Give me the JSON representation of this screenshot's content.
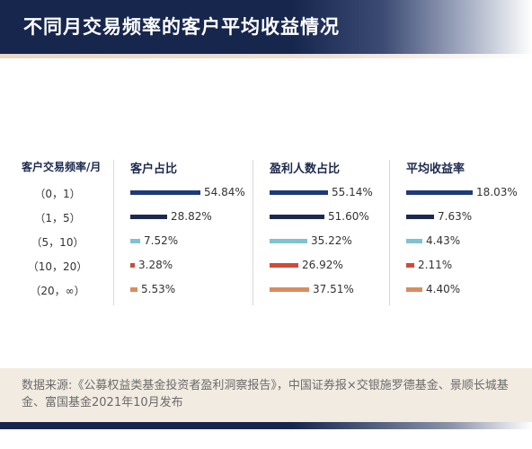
{
  "title": "不同月交易频率的客户平均收益情况",
  "source": "数据来源:《公募权益类基金投资者盈利洞察报告》，中国证券报×交银施罗德基金、景顺长城基金、富国基金2021年10月发布",
  "colors": {
    "navy": "#1e3a78",
    "dark_navy": "#1c2850",
    "light_blue": "#7cc3d3",
    "red": "#d24a3a",
    "tan": "#d98c5f"
  },
  "chart_data": {
    "type": "bar",
    "orientation": "horizontal",
    "category_header": "客户交易频率/月",
    "categories": [
      "（0，1）",
      "（1，5）",
      "（5，10）",
      "（10，20）",
      "（20，∞）"
    ],
    "series": [
      {
        "name": "客户占比",
        "values": [
          54.84,
          28.82,
          7.52,
          3.28,
          5.53
        ],
        "labels": [
          "54.84%",
          "28.82%",
          "7.52%",
          "3.28%",
          "5.53%"
        ]
      },
      {
        "name": "盈利人数占比",
        "values": [
          55.14,
          51.6,
          35.22,
          26.92,
          37.51
        ],
        "labels": [
          "55.14%",
          "51.60%",
          "35.22%",
          "26.92%",
          "37.51%"
        ]
      },
      {
        "name": "平均收益率",
        "values": [
          18.03,
          7.63,
          4.43,
          2.11,
          4.4
        ],
        "labels": [
          "18.03%",
          "7.63%",
          "4.43%",
          "2.11%",
          "4.40%"
        ]
      }
    ],
    "bar_colors": [
      "#1e3a78",
      "#1c2850",
      "#7cc3d3",
      "#d24a3a",
      "#d98c5f"
    ]
  }
}
